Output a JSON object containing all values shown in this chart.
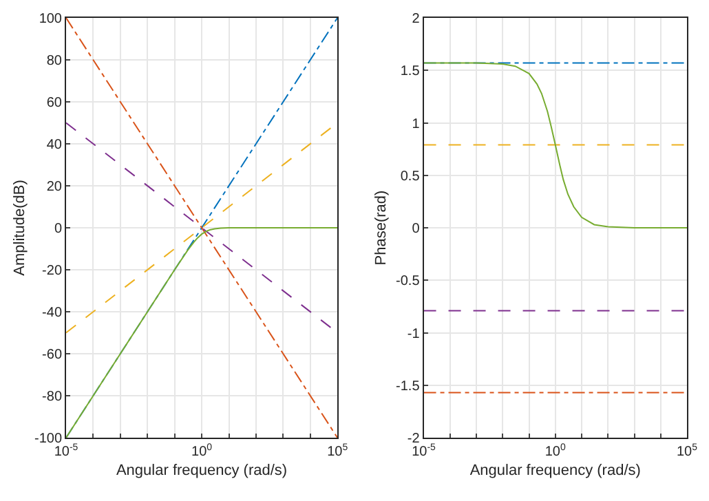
{
  "chart_data": [
    {
      "type": "line",
      "xlabel": "Angular frequency (rad/s)",
      "ylabel": "Amplitude(dB)",
      "log": "x",
      "grid": true,
      "xlim": [
        1e-05,
        100000
      ],
      "xticks": [
        {
          "value": 1e-05,
          "label": "10$^{-5}$"
        },
        {
          "value": 0.0001,
          "label": null
        },
        {
          "value": 0.001,
          "label": null
        },
        {
          "value": 0.01,
          "label": null
        },
        {
          "value": 0.1,
          "label": null
        },
        {
          "value": 1,
          "label": "10$^{0}$"
        },
        {
          "value": 10,
          "label": null
        },
        {
          "value": 100,
          "label": null
        },
        {
          "value": 1000,
          "label": null
        },
        {
          "value": 10000,
          "label": null
        },
        {
          "value": 100000,
          "label": "10$^{5}$"
        }
      ],
      "ylim": [
        -100,
        100
      ],
      "yticks": [
        -100,
        -80,
        -60,
        -40,
        -20,
        0,
        20,
        40,
        60,
        80,
        100
      ],
      "series": [
        {
          "color": "#0072bd",
          "line_style": "dashdot",
          "x": [
            1e-05,
            100000
          ],
          "values": [
            -100,
            100
          ]
        },
        {
          "color": "#d95319",
          "line_style": "dashdot",
          "x": [
            1e-05,
            100000
          ],
          "values": [
            100,
            -100
          ]
        },
        {
          "color": "#edb120",
          "line_style": "dashed",
          "x": [
            1e-05,
            100000
          ],
          "values": [
            -50,
            50
          ]
        },
        {
          "color": "#7e2f8e",
          "line_style": "dashed",
          "x": [
            1e-05,
            100000
          ],
          "values": [
            50,
            -50
          ]
        },
        {
          "color": "#77ac30",
          "line_style": "solid",
          "x": [
            1e-05,
            0.0001,
            0.001,
            0.01,
            0.1,
            0.3,
            0.5,
            0.7,
            1,
            1.5,
            2,
            3,
            5,
            10,
            100,
            100000
          ],
          "values": [
            -100,
            -80,
            -60,
            -40,
            -20,
            -10.8,
            -7,
            -4.8,
            -3,
            -1.6,
            -1,
            -0.5,
            -0.2,
            0,
            0,
            0
          ]
        }
      ]
    },
    {
      "type": "line",
      "xlabel": "Angular frequency (rad/s)",
      "ylabel": "Phase(rad)",
      "log": "x",
      "grid": true,
      "xlim": [
        1e-05,
        100000
      ],
      "xticks": [
        {
          "value": 1e-05,
          "label": "10$^{-5}$"
        },
        {
          "value": 0.0001,
          "label": null
        },
        {
          "value": 0.001,
          "label": null
        },
        {
          "value": 0.01,
          "label": null
        },
        {
          "value": 0.1,
          "label": null
        },
        {
          "value": 1,
          "label": "10$^{0}$"
        },
        {
          "value": 10,
          "label": null
        },
        {
          "value": 100,
          "label": null
        },
        {
          "value": 1000,
          "label": null
        },
        {
          "value": 10000,
          "label": null
        },
        {
          "value": 100000,
          "label": "10$^{5}$"
        }
      ],
      "ylim": [
        -2,
        2
      ],
      "yticks": [
        -2,
        -1.5,
        -1,
        -0.5,
        0,
        0.5,
        1,
        1.5,
        2
      ],
      "series": [
        {
          "color": "#0072bd",
          "line_style": "dashdot",
          "x": [
            1e-05,
            100000
          ],
          "values": [
            1.57,
            1.57
          ]
        },
        {
          "color": "#d95319",
          "line_style": "dashdot",
          "x": [
            1e-05,
            100000
          ],
          "values": [
            -1.57,
            -1.57
          ]
        },
        {
          "color": "#edb120",
          "line_style": "dashed",
          "x": [
            1e-05,
            100000
          ],
          "values": [
            0.79,
            0.79
          ]
        },
        {
          "color": "#7e2f8e",
          "line_style": "dashed",
          "x": [
            1e-05,
            100000
          ],
          "values": [
            -0.79,
            -0.79
          ]
        },
        {
          "color": "#77ac30",
          "line_style": "solid",
          "x": [
            1e-05,
            0.001,
            0.01,
            0.03,
            0.1,
            0.2,
            0.3,
            0.5,
            0.7,
            1,
            1.5,
            2,
            3,
            5,
            10,
            30,
            100,
            1000,
            100000
          ],
          "values": [
            1.57,
            1.57,
            1.56,
            1.54,
            1.47,
            1.37,
            1.28,
            1.11,
            0.96,
            0.79,
            0.59,
            0.46,
            0.32,
            0.2,
            0.1,
            0.03,
            0.01,
            0,
            0
          ]
        }
      ]
    }
  ]
}
